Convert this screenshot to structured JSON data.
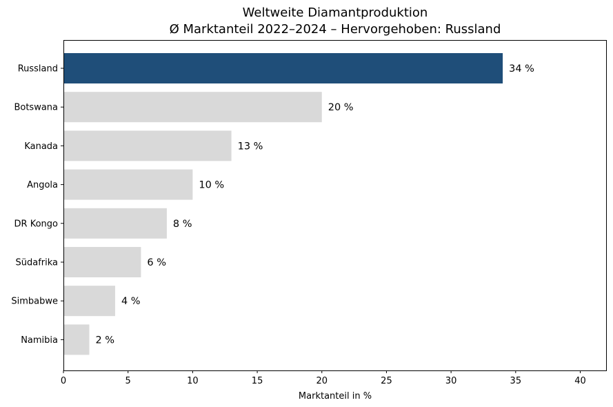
{
  "chart_data": {
    "type": "bar",
    "orientation": "horizontal",
    "title": "Weltweite Diamantproduktion",
    "subtitle": "Ø Marktanteil 2022–2024 – Hervorgehoben: Russland",
    "xlabel": "Marktanteil in %",
    "ylabel": "",
    "categories": [
      "Russland",
      "Botswana",
      "Kanada",
      "Angola",
      "DR Kongo",
      "Südafrika",
      "Simbabwe",
      "Namibia"
    ],
    "values": [
      34,
      20,
      13,
      10,
      8,
      6,
      4,
      2
    ],
    "value_labels": [
      "34 %",
      "20 %",
      "13 %",
      "10 %",
      "8 %",
      "6 %",
      "4 %",
      "2 %"
    ],
    "highlight": "Russland",
    "colors": {
      "highlight": "#1f4e79",
      "default": "#d9d9d9"
    },
    "xlim": [
      0,
      42
    ],
    "xticks": [
      0,
      5,
      10,
      15,
      20,
      25,
      30,
      35,
      40
    ],
    "grid": false,
    "legend": "none"
  }
}
